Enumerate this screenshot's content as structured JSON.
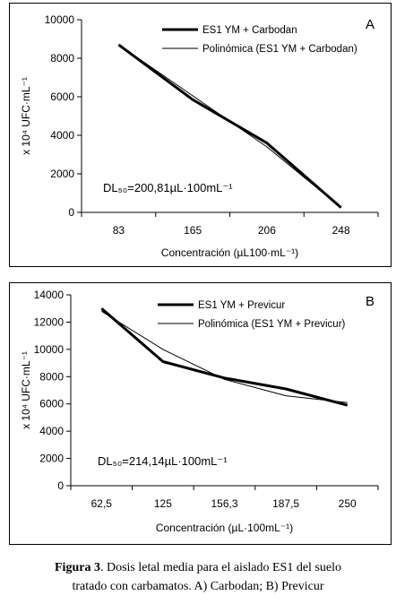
{
  "chart_data": [
    {
      "type": "line",
      "panel_label": "A",
      "categories": [
        "83",
        "165",
        "206",
        "248"
      ],
      "series": [
        {
          "name": "ES1 YM + Carbodan",
          "values": [
            8700,
            5850,
            3600,
            250
          ],
          "style": "thick"
        },
        {
          "name": "Polinómica (ES1 YM + Carbodan)",
          "values": [
            8700,
            6050,
            3400,
            250
          ],
          "style": "thin"
        }
      ],
      "ylim": [
        0,
        10000
      ],
      "yticks": [
        "0",
        "2000",
        "4000",
        "6000",
        "8000",
        "10000"
      ],
      "ylabel": "x 10⁴ UFC·mL⁻¹",
      "xlabel": "Concentración (µL100·mL⁻¹)",
      "annotation": "DL₅₀=200,81µL·100mL⁻¹",
      "legend": "top-right",
      "grid": false
    },
    {
      "type": "line",
      "panel_label": "B",
      "categories": [
        "62,5",
        "125",
        "156,3",
        "187,5",
        "250"
      ],
      "series": [
        {
          "name": "ES1 YM + Previcur",
          "values": [
            13000,
            9100,
            7900,
            7100,
            5900
          ],
          "style": "thick"
        },
        {
          "name": "Polinómica (ES1 YM + Previcur)",
          "values": [
            12800,
            10000,
            7800,
            6600,
            6100
          ],
          "style": "thin"
        }
      ],
      "ylim": [
        0,
        14000
      ],
      "yticks": [
        "0",
        "2000",
        "4000",
        "6000",
        "8000",
        "10000",
        "12000",
        "14000"
      ],
      "ylabel": "x 10⁴ UFC·mL⁻¹",
      "xlabel": "Concentración (µL·100mL⁻¹)",
      "annotation": "DL₅₀=214,14µL·100mL⁻¹",
      "legend": "top-right",
      "grid": false
    }
  ],
  "caption": {
    "label": "Figura 3",
    "text_line1": ". Dosis letal media para el aislado ES1 del suelo",
    "text_line2": "tratado con carbamatos. A) Carbodan;  B) Previcur"
  }
}
